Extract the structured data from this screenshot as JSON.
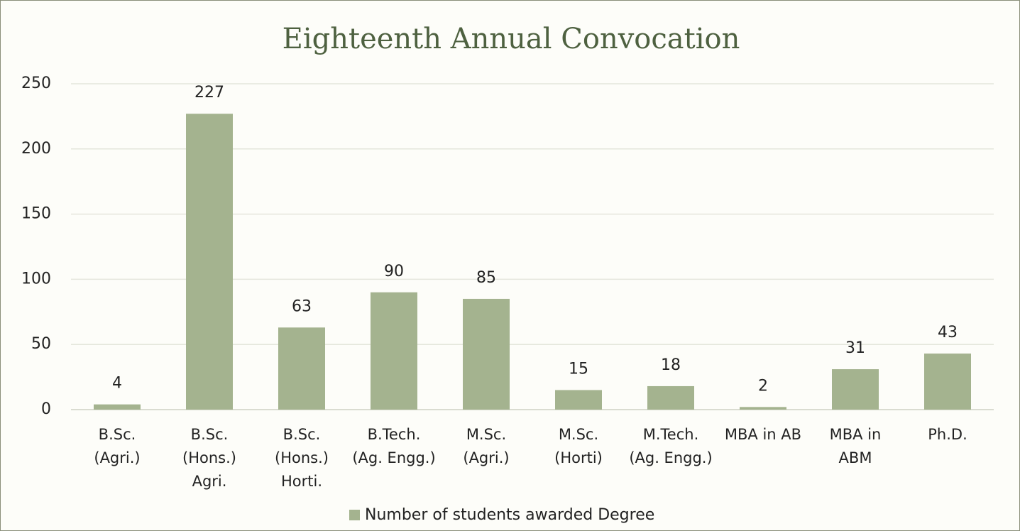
{
  "chart_data": {
    "type": "bar",
    "title": "Eighteenth Annual Convocation",
    "categories": [
      "B.Sc.\n(Agri.)",
      "B.Sc.\n(Hons.)\nAgri.",
      "B.Sc.\n(Hons.)\nHorti.",
      "B.Tech.\n(Ag. Engg.)",
      "M.Sc.\n(Agri.)",
      "M.Sc.\n(Horti)",
      "M.Tech.\n(Ag. Engg.)",
      "MBA in AB",
      "MBA in\nABM",
      "Ph.D."
    ],
    "series": [
      {
        "name": "Number of students awarded Degree",
        "color": "#a4b38f",
        "values": [
          4,
          227,
          63,
          90,
          85,
          15,
          18,
          2,
          31,
          43
        ]
      }
    ],
    "ylim": [
      0,
      250
    ],
    "yticks": [
      0,
      50,
      100,
      150,
      200,
      250
    ],
    "grid": true,
    "legend": "bottom"
  }
}
